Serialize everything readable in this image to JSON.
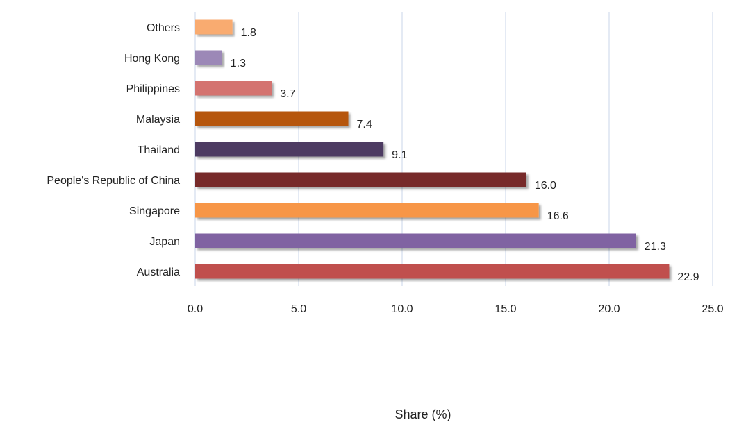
{
  "chart_data": {
    "type": "bar",
    "orientation": "horizontal",
    "categories": [
      "Australia",
      "Japan",
      "Singapore",
      "People's Republic of China",
      "Thailand",
      "Malaysia",
      "Philippines",
      "Hong Kong",
      "Others"
    ],
    "values": [
      22.9,
      21.3,
      16.6,
      16.0,
      9.1,
      7.4,
      3.7,
      1.3,
      1.8
    ],
    "value_labels": [
      "22.9",
      "21.3",
      "16.6",
      "16.0",
      "9.1",
      "7.4",
      "3.7",
      "1.3",
      "1.8"
    ],
    "bar_colors": [
      "#c0504d",
      "#8064a2",
      "#f79646",
      "#772c2a",
      "#4d3b62",
      "#b65708",
      "#d4736f",
      "#9c88b7",
      "#f9ab6f"
    ],
    "title": "",
    "xlabel": "Share (%)",
    "ylabel": "",
    "xlim": [
      0,
      25
    ],
    "x_ticks": [
      0,
      5,
      10,
      15,
      20,
      25
    ],
    "x_tick_labels": [
      "0.0",
      "5.0",
      "10.0",
      "15.0",
      "20.0",
      "25.0"
    ],
    "grid": "vertical",
    "grid_color": "#c9d6ea",
    "legend": "none"
  }
}
